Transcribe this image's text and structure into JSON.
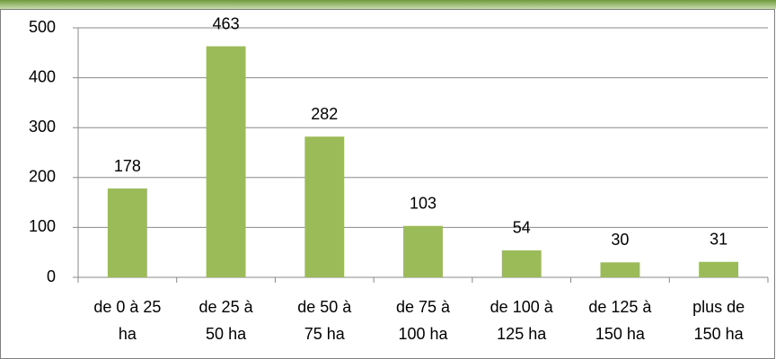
{
  "chart_data": {
    "type": "bar",
    "categories": [
      "de 0 à 25\nha",
      "de 25 à\n50 ha",
      "de 50 à\n75 ha",
      "de 75 à\n100 ha",
      "de 100 à\n125 ha",
      "de 125 à\n150 ha",
      "plus de\n150 ha"
    ],
    "values": [
      178,
      463,
      282,
      103,
      54,
      30,
      31
    ],
    "color": "#9bbb59",
    "ylim": [
      0,
      500
    ],
    "yticks": [
      0,
      100,
      200,
      300,
      400,
      500
    ],
    "grid": true
  }
}
